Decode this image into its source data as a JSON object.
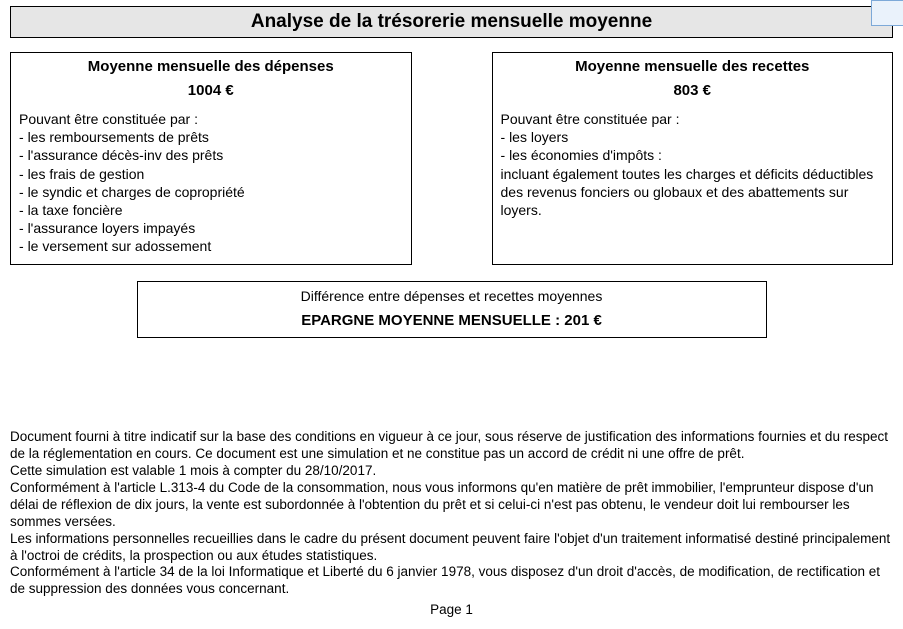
{
  "title": "Analyse de la trésorerie mensuelle moyenne",
  "expenses": {
    "title": "Moyenne mensuelle des dépenses",
    "amount": "1004 €",
    "intro": "Pouvant être constituée par :",
    "items": [
      "les remboursements de prêts",
      "l'assurance décès-inv des prêts",
      "les frais de gestion",
      "le syndic et charges de copropriété",
      "la taxe foncière",
      "l'assurance loyers impayés",
      "le versement sur adossement"
    ]
  },
  "income": {
    "title": "Moyenne mensuelle des recettes",
    "amount": "803 €",
    "intro": "Pouvant être constituée par :",
    "items": [
      "les loyers",
      "les économies d'impôts :"
    ],
    "note": "incluant également toutes les charges et déficits déductibles des revenus fonciers ou globaux et des abattements sur loyers."
  },
  "diff": {
    "title": "Différence entre dépenses et recettes moyennes",
    "line": "EPARGNE MOYENNE MENSUELLE : 201 €"
  },
  "footer": {
    "p1": "Document fourni à titre indicatif sur la base des conditions en vigueur à ce jour, sous réserve de justification des informations fournies et du respect de la réglementation en cours. Ce document est une simulation et ne constitue pas un accord de crédit ni une offre de prêt.",
    "p2": "Cette simulation est valable 1 mois à compter du 28/10/2017.",
    "p3": "Conformément à l'article L.313-4 du Code de la consommation, nous vous informons qu'en matière de prêt immobilier, l'emprunteur dispose d'un délai de réflexion de dix jours, la vente est subordonnée à l'obtention du prêt et si celui-ci n'est pas obtenu, le vendeur doit lui rembourser les sommes versées.",
    "p4": "Les informations personnelles recueillies dans le cadre du présent document peuvent faire l'objet d'un traitement informatisé destiné principalement à l'octroi de crédits, la prospection ou aux études statistiques.",
    "p5": "Conformément à l'article 34 de la loi Informatique et Liberté du 6 janvier 1978, vous disposez d'un droit d'accès, de modification, de rectification et de suppression des données vous concernant.",
    "page": "Page 1"
  },
  "colors": {
    "title_bg": "#e6e6e6",
    "border": "#000000",
    "tab_border": "#7da9d8",
    "tab_bg": "#eaf2fb"
  }
}
